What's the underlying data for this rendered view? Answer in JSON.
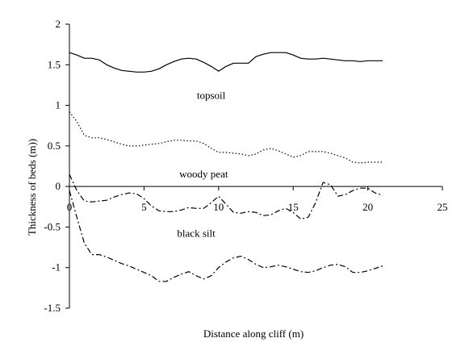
{
  "chart_data": {
    "type": "line",
    "xlabel": "Distance along cliff (m)",
    "ylabel": "Thickness of beds (m))",
    "xlim": [
      0,
      25
    ],
    "ylim": [
      -1.5,
      2
    ],
    "xticks": [
      "0",
      "5",
      "10",
      "15",
      "20",
      "25"
    ],
    "yticks": [
      "2",
      "1.5",
      "1",
      "0.5",
      "0",
      "-0.5",
      "-1",
      "-1.5"
    ],
    "grid": false,
    "legend": "none",
    "annotations": [
      {
        "text": "topsoil",
        "x": 9.5,
        "y": 1.08
      },
      {
        "text": "woody peat",
        "x": 9.0,
        "y": 0.11
      },
      {
        "text": "black silt",
        "x": 8.5,
        "y": -0.62
      }
    ],
    "series": [
      {
        "style": "solid",
        "x": [
          0,
          0.5,
          1,
          1.5,
          2,
          2.5,
          3,
          3.5,
          4,
          4.5,
          5,
          5.5,
          6,
          6.5,
          7,
          7.5,
          8,
          8.5,
          9,
          9.5,
          10,
          10.5,
          11,
          11.5,
          12,
          12.5,
          13,
          13.5,
          14,
          14.5,
          15,
          15.5,
          16,
          16.5,
          17,
          17.5,
          18,
          18.5,
          19,
          19.5,
          20,
          20.5,
          21
        ],
        "y": [
          1.65,
          1.62,
          1.58,
          1.58,
          1.56,
          1.5,
          1.46,
          1.43,
          1.42,
          1.41,
          1.41,
          1.42,
          1.45,
          1.5,
          1.54,
          1.57,
          1.58,
          1.57,
          1.53,
          1.48,
          1.42,
          1.48,
          1.52,
          1.52,
          1.52,
          1.6,
          1.63,
          1.65,
          1.65,
          1.65,
          1.62,
          1.58,
          1.57,
          1.57,
          1.58,
          1.57,
          1.56,
          1.55,
          1.55,
          1.54,
          1.55,
          1.55,
          1.55
        ]
      },
      {
        "style": "dotted",
        "x": [
          0,
          0.5,
          1,
          1.5,
          2,
          2.5,
          3,
          3.5,
          4,
          4.5,
          5,
          5.5,
          6,
          6.5,
          7,
          7.5,
          8,
          8.5,
          9,
          9.5,
          10,
          10.5,
          11,
          11.5,
          12,
          12.5,
          13,
          13.5,
          14,
          14.5,
          15,
          15.5,
          16,
          16.5,
          17,
          17.5,
          18,
          18.5,
          19,
          19.5,
          20,
          20.5,
          21
        ],
        "y": [
          0.92,
          0.8,
          0.63,
          0.6,
          0.6,
          0.58,
          0.55,
          0.52,
          0.5,
          0.5,
          0.51,
          0.52,
          0.53,
          0.55,
          0.57,
          0.57,
          0.56,
          0.56,
          0.53,
          0.47,
          0.42,
          0.42,
          0.41,
          0.4,
          0.38,
          0.4,
          0.45,
          0.47,
          0.44,
          0.4,
          0.36,
          0.38,
          0.43,
          0.43,
          0.43,
          0.41,
          0.38,
          0.35,
          0.3,
          0.29,
          0.3,
          0.3,
          0.3
        ]
      },
      {
        "style": "dash-dot",
        "x": [
          0,
          0.5,
          1,
          1.5,
          2,
          2.5,
          3,
          3.5,
          4,
          4.5,
          5,
          5.5,
          6,
          6.5,
          7,
          7.5,
          8,
          8.5,
          9,
          9.5,
          10,
          10.5,
          11,
          11.5,
          12,
          12.5,
          13,
          13.5,
          14,
          14.5,
          15,
          15.5,
          16,
          16.5,
          17,
          17.5,
          18,
          18.5,
          19,
          19.5,
          20,
          20.5,
          21
        ],
        "y": [
          0.15,
          -0.05,
          -0.18,
          -0.19,
          -0.18,
          -0.17,
          -0.13,
          -0.1,
          -0.08,
          -0.09,
          -0.15,
          -0.24,
          -0.3,
          -0.31,
          -0.31,
          -0.29,
          -0.26,
          -0.27,
          -0.27,
          -0.2,
          -0.12,
          -0.22,
          -0.32,
          -0.33,
          -0.31,
          -0.32,
          -0.36,
          -0.35,
          -0.3,
          -0.27,
          -0.32,
          -0.4,
          -0.38,
          -0.2,
          0.05,
          0.02,
          -0.12,
          -0.1,
          -0.05,
          -0.02,
          -0.02,
          -0.08,
          -0.11
        ]
      },
      {
        "style": "dash-dot",
        "x": [
          0,
          0.5,
          1,
          1.5,
          2,
          2.5,
          3,
          3.5,
          4,
          4.5,
          5,
          5.5,
          6,
          6.5,
          7,
          7.5,
          8,
          8.5,
          9,
          9.5,
          10,
          10.5,
          11,
          11.5,
          12,
          12.5,
          13,
          13.5,
          14,
          14.5,
          15,
          15.5,
          16,
          16.5,
          17,
          17.5,
          18,
          18.5,
          19,
          19.5,
          20,
          20.5,
          21
        ],
        "y": [
          -0.05,
          -0.38,
          -0.7,
          -0.84,
          -0.84,
          -0.87,
          -0.91,
          -0.95,
          -0.98,
          -1.02,
          -1.06,
          -1.1,
          -1.17,
          -1.17,
          -1.12,
          -1.08,
          -1.05,
          -1.1,
          -1.14,
          -1.1,
          -1.0,
          -0.93,
          -0.88,
          -0.86,
          -0.9,
          -0.96,
          -1.0,
          -0.99,
          -0.97,
          -0.99,
          -1.02,
          -1.05,
          -1.06,
          -1.04,
          -1.0,
          -0.97,
          -0.96,
          -0.99,
          -1.06,
          -1.06,
          -1.04,
          -1.01,
          -0.98
        ]
      }
    ]
  }
}
